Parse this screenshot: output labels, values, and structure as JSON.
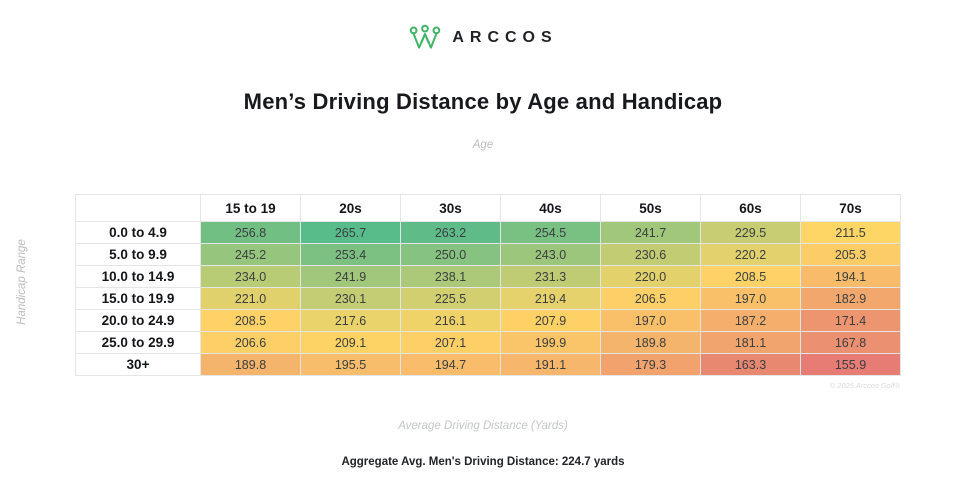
{
  "brand": {
    "logo_text": "ARCCOS",
    "logo_icon": "crown-w-icon",
    "logo_color": "#41b468"
  },
  "title": "Men’s Driving Distance by Age and Handicap",
  "axes": {
    "top_label": "Age",
    "left_label": "Handicap Range",
    "bottom_label": "Average Driving Distance (Yards)"
  },
  "footer": {
    "aggregate_note": "Aggregate Avg. Men's Driving Distance: 224.7 yards",
    "copyright": "© 2025 Arccos Golf®"
  },
  "chart_data": {
    "type": "heatmap",
    "title": "Men’s Driving Distance by Age and Handicap",
    "xlabel": "Age",
    "ylabel": "Handicap Range",
    "value_label": "Average Driving Distance (Yards)",
    "columns": [
      "15 to 19",
      "20s",
      "30s",
      "40s",
      "50s",
      "60s",
      "70s"
    ],
    "rows": [
      "0.0 to 4.9",
      "5.0 to 9.9",
      "10.0 to 14.9",
      "15.0 to 19.9",
      "20.0 to 24.9",
      "25.0 to 29.9",
      "30+"
    ],
    "values": [
      [
        256.8,
        265.7,
        263.2,
        254.5,
        241.7,
        229.5,
        211.5
      ],
      [
        245.2,
        253.4,
        250.0,
        243.0,
        230.6,
        220.2,
        205.3
      ],
      [
        234.0,
        241.9,
        238.1,
        231.3,
        220.0,
        208.5,
        194.1
      ],
      [
        221.0,
        230.1,
        225.5,
        219.4,
        206.5,
        197.0,
        182.9
      ],
      [
        208.5,
        217.6,
        216.1,
        207.9,
        197.0,
        187.2,
        171.4
      ],
      [
        206.6,
        209.1,
        207.1,
        199.9,
        189.8,
        181.1,
        167.8
      ],
      [
        189.8,
        195.5,
        194.7,
        191.1,
        179.3,
        163.3,
        155.9
      ]
    ],
    "value_format_decimals": 1,
    "colormap": {
      "min": 155.9,
      "max": 265.7,
      "min_color": "#E67C73",
      "mid_color": "#FFD666",
      "max_color": "#57BB8A"
    },
    "grid": true,
    "legend": false
  }
}
